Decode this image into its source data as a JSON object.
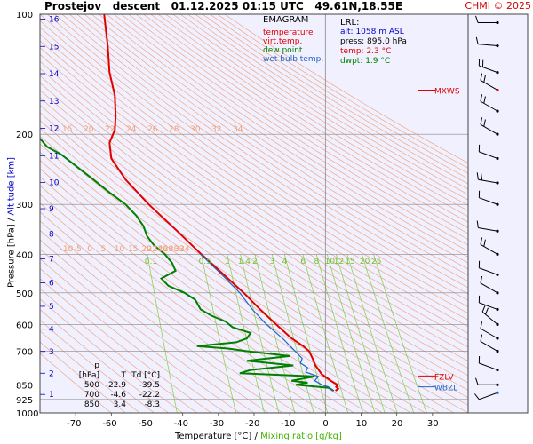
{
  "header": {
    "title": "Prostejov   descent   01.12.2025 01:15 UTC   49.61N,18.55E",
    "copyright": "CHMI © 2025"
  },
  "legend": {
    "title": "EMAGRAM",
    "items": [
      {
        "label": "temperature",
        "color": "#e00000"
      },
      {
        "label": "virt.temp.",
        "color": "#e00000"
      },
      {
        "label": "dew point",
        "color": "#008000"
      },
      {
        "label": "wet bulb temp.",
        "color": "#1e64c8"
      }
    ]
  },
  "lrl": {
    "title": "LRL:",
    "lines": [
      {
        "text": "alt: 1058 m ASL",
        "color": "#0000c8"
      },
      {
        "text": "press: 895.0 hPa",
        "color": "#000000"
      },
      {
        "text": "temp: 2.3 °C",
        "color": "#e00000"
      },
      {
        "text": "dwpt: 1.9 °C",
        "color": "#008000"
      }
    ]
  },
  "table": {
    "headers": [
      "p [hPa]",
      "T",
      "Td [°C]"
    ],
    "rows": [
      [
        "500",
        "-22.9",
        "-39.5"
      ],
      [
        "700",
        "-4.6",
        "-22.2"
      ],
      [
        "850",
        "3.4",
        "-8.3"
      ]
    ]
  },
  "axes": {
    "y_label_pressure": "Pressure [hPa]",
    "y_label_sep": "/",
    "y_label_altitude": "Altitude [km]",
    "x_label_temperature": "Temperature [°C]",
    "x_label_sep": "/",
    "x_label_mixing": "Mixing ratio [g/kg]"
  },
  "right_panel": {
    "levels": [
      {
        "label": "MXWS",
        "p": 155,
        "color": "#e00000"
      },
      {
        "label": "FZLV",
        "p": 808,
        "color": "#e00000"
      },
      {
        "label": "WBZL",
        "p": 860,
        "color": "#1e64c8"
      }
    ]
  },
  "colors": {
    "background": "#f0f0ff",
    "grid": "#888888",
    "dry_adiabat": "#f0a078",
    "mixing_ratio": "#80d040",
    "temperature": "#e00000",
    "dewpoint": "#008000",
    "wet_bulb": "#1e64c8",
    "altitude": "#0000c8"
  },
  "chart_data": {
    "type": "line",
    "x_axis": {
      "label": "Temperature [°C]",
      "range": [
        -80,
        40
      ],
      "ticks": [
        -70,
        -60,
        -50,
        -40,
        -30,
        -20,
        -10,
        0,
        10,
        20,
        30
      ]
    },
    "y_axis": {
      "label": "Pressure [hPa]",
      "scale": "log",
      "range": [
        1000,
        100
      ],
      "ticks": [
        100,
        200,
        300,
        400,
        500,
        600,
        700,
        850,
        925,
        1000
      ]
    },
    "altitude_km_ticks": [
      1,
      2,
      3,
      4,
      5,
      6,
      7,
      8,
      9,
      10,
      11,
      12,
      13,
      14,
      15,
      16
    ],
    "dry_adiabat_labels": [
      "-10",
      "-5",
      "0",
      "5",
      "10",
      "15",
      "20",
      "22",
      "24",
      "26",
      "28",
      "30",
      "32",
      "34"
    ],
    "dry_adiabat_labels_top": [
      "15",
      "20",
      "22",
      "24",
      "26",
      "28",
      "30",
      "32",
      "34"
    ],
    "mixing_ratio_labels": [
      "0.1",
      "0.5",
      "1",
      "1.4",
      "2",
      "3",
      "4",
      "6",
      "8",
      "10",
      "12",
      "15",
      "20",
      "25"
    ],
    "series": [
      {
        "name": "temperature",
        "color": "#e00000",
        "points": [
          [
            880,
            2.8
          ],
          [
            870,
            3.6
          ],
          [
            860,
            3.0
          ],
          [
            850,
            3.4
          ],
          [
            830,
            1.5
          ],
          [
            800,
            -1.0
          ],
          [
            760,
            -2.8
          ],
          [
            730,
            -3.6
          ],
          [
            700,
            -4.6
          ],
          [
            680,
            -6.2
          ],
          [
            650,
            -9.5
          ],
          [
            600,
            -13.8
          ],
          [
            550,
            -18.3
          ],
          [
            500,
            -22.9
          ],
          [
            450,
            -28.5
          ],
          [
            400,
            -34.8
          ],
          [
            350,
            -41.5
          ],
          [
            300,
            -49.5
          ],
          [
            260,
            -56
          ],
          [
            230,
            -60
          ],
          [
            210,
            -60.5
          ],
          [
            195,
            -59
          ],
          [
            180,
            -58.8
          ],
          [
            160,
            -59
          ],
          [
            140,
            -60.5
          ],
          [
            120,
            -61
          ],
          [
            110,
            -61.5
          ],
          [
            100,
            -62
          ]
        ]
      },
      {
        "name": "dew point",
        "color": "#008000",
        "points": [
          [
            880,
            2.3
          ],
          [
            865,
            1.0
          ],
          [
            850,
            -8.3
          ],
          [
            840,
            -5.0
          ],
          [
            830,
            -9.5
          ],
          [
            810,
            -3.0
          ],
          [
            795,
            -24.0
          ],
          [
            780,
            -21.0
          ],
          [
            760,
            -9.0
          ],
          [
            740,
            -22.0
          ],
          [
            720,
            -10.0
          ],
          [
            700,
            -22.2
          ],
          [
            690,
            -27.0
          ],
          [
            680,
            -36.0
          ],
          [
            665,
            -25.0
          ],
          [
            650,
            -22.0
          ],
          [
            630,
            -21.0
          ],
          [
            610,
            -26.0
          ],
          [
            590,
            -28.0
          ],
          [
            570,
            -32.0
          ],
          [
            550,
            -35.0
          ],
          [
            520,
            -36.5
          ],
          [
            500,
            -39.5
          ],
          [
            480,
            -44.0
          ],
          [
            460,
            -46.0
          ],
          [
            440,
            -42.0
          ],
          [
            420,
            -43.0
          ],
          [
            400,
            -45.0
          ],
          [
            380,
            -48.0
          ],
          [
            360,
            -50.0
          ],
          [
            340,
            -51.0
          ],
          [
            320,
            -53.0
          ],
          [
            300,
            -56.0
          ],
          [
            280,
            -60.5
          ],
          [
            260,
            -65.0
          ],
          [
            240,
            -70.0
          ],
          [
            225,
            -74.0
          ],
          [
            215,
            -78.0
          ],
          [
            205,
            -80.0
          ]
        ]
      },
      {
        "name": "wet bulb temp.",
        "color": "#1e64c8",
        "points": [
          [
            880,
            2.4
          ],
          [
            860,
            0.8
          ],
          [
            850,
            -1.0
          ],
          [
            830,
            -3.0
          ],
          [
            810,
            -2.0
          ],
          [
            790,
            -5.5
          ],
          [
            770,
            -5.0
          ],
          [
            750,
            -7.0
          ],
          [
            730,
            -6.5
          ],
          [
            700,
            -8.5
          ],
          [
            650,
            -12.0
          ],
          [
            600,
            -16.5
          ],
          [
            550,
            -20.5
          ],
          [
            500,
            -24.0
          ],
          [
            450,
            -29.0
          ],
          [
            400,
            -35.0
          ]
        ]
      }
    ],
    "wind_barbs": [
      {
        "p": 105,
        "dir": 270,
        "kt": 10
      },
      {
        "p": 120,
        "dir": 275,
        "kt": 10
      },
      {
        "p": 140,
        "dir": 290,
        "kt": 15
      },
      {
        "p": 155,
        "dir": 300,
        "kt": 20
      },
      {
        "p": 175,
        "dir": 300,
        "kt": 15
      },
      {
        "p": 200,
        "dir": 300,
        "kt": 15
      },
      {
        "p": 230,
        "dir": 290,
        "kt": 10
      },
      {
        "p": 265,
        "dir": 280,
        "kt": 15
      },
      {
        "p": 300,
        "dir": 290,
        "kt": 10
      },
      {
        "p": 350,
        "dir": 280,
        "kt": 10
      },
      {
        "p": 400,
        "dir": 300,
        "kt": 15
      },
      {
        "p": 450,
        "dir": 290,
        "kt": 10
      },
      {
        "p": 500,
        "dir": 300,
        "kt": 10
      },
      {
        "p": 550,
        "dir": 290,
        "kt": 10
      },
      {
        "p": 600,
        "dir": 310,
        "kt": 15
      },
      {
        "p": 650,
        "dir": 300,
        "kt": 10
      },
      {
        "p": 700,
        "dir": 300,
        "kt": 10
      },
      {
        "p": 780,
        "dir": 290,
        "kt": 10
      },
      {
        "p": 850,
        "dir": 270,
        "kt": 10
      },
      {
        "p": 890,
        "dir": 250,
        "kt": 5
      }
    ]
  }
}
